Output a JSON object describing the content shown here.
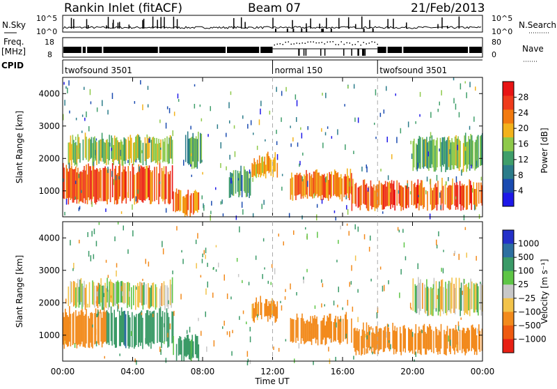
{
  "header": {
    "station": "Rankin Inlet (fitACF)",
    "beam": "Beam 07",
    "date": "21/Feb/2013"
  },
  "top_strip": {
    "left_label": "N.Sky",
    "left_ticks": [
      "10^5",
      "10^0"
    ],
    "right_label": "N.Search",
    "right_ticks": [
      "10^5",
      "10^0"
    ]
  },
  "freq_strip": {
    "left_label_1": "Freq.",
    "left_label_2": "[MHz]",
    "left_ticks": [
      "18",
      "8"
    ],
    "right_label": "Nave",
    "right_ticks": [
      "80",
      "0"
    ]
  },
  "cpid": {
    "label": "CPID",
    "segments": [
      {
        "name": "twofsound 3501",
        "start_hour": 0
      },
      {
        "name": "normal 150",
        "start_hour": 12
      },
      {
        "name": "twofsound 3501",
        "start_hour": 18
      }
    ]
  },
  "time_axis": {
    "label": "Time UT",
    "ticks": [
      "00:00",
      "04:00",
      "08:00",
      "12:00",
      "16:00",
      "20:00",
      "00:00"
    ]
  },
  "colors": {
    "power_scale": [
      "#1e18e8",
      "#1a4bb0",
      "#2b7c8a",
      "#3f9e6a",
      "#8ec94a",
      "#f2b21c",
      "#f27a10",
      "#ef3b1c",
      "#e81414"
    ],
    "velocity_scale": [
      "#2430c8",
      "#2d6fa0",
      "#3a9a67",
      "#5ec546",
      "#c8c8c8",
      "#f2c34a",
      "#f28a1c",
      "#ee5a10",
      "#e82014"
    ],
    "gate_separator": "#aaaaaa"
  },
  "chart_data": [
    {
      "type": "heatmap",
      "title": "",
      "xlabel": "Time UT",
      "ylabel": "Slant Range [km]",
      "xlim": [
        0,
        24
      ],
      "ylim": [
        200,
        4500
      ],
      "yticks": [
        1000,
        2000,
        3000,
        4000
      ],
      "xticks_hours": [
        0,
        4,
        8,
        12,
        16,
        20,
        24
      ],
      "colorbar": {
        "label": "Power [dB]",
        "range": [
          0,
          32
        ],
        "ticks": [
          4,
          8,
          12,
          16,
          20,
          24,
          28
        ]
      },
      "echo_bands": [
        {
          "t0": 0.0,
          "t1": 6.3,
          "r0": 700,
          "r1": 1700,
          "level": 26
        },
        {
          "t0": 0.3,
          "t1": 6.3,
          "r0": 1900,
          "r1": 2600,
          "level": 16
        },
        {
          "t0": 6.3,
          "t1": 7.8,
          "r0": 300,
          "r1": 900,
          "level": 24
        },
        {
          "t0": 7.0,
          "t1": 8.0,
          "r0": 1800,
          "r1": 2700,
          "level": 12
        },
        {
          "t0": 9.5,
          "t1": 10.8,
          "r0": 900,
          "r1": 1600,
          "level": 10
        },
        {
          "t0": 10.8,
          "t1": 12.3,
          "r0": 1500,
          "r1": 2000,
          "level": 22
        },
        {
          "t0": 13.0,
          "t1": 16.5,
          "r0": 800,
          "r1": 1500,
          "level": 24
        },
        {
          "t0": 16.5,
          "t1": 24.0,
          "r0": 500,
          "r1": 1200,
          "level": 26
        },
        {
          "t0": 20.0,
          "t1": 24.0,
          "r0": 1700,
          "r1": 2600,
          "level": 14
        }
      ]
    },
    {
      "type": "heatmap",
      "title": "",
      "xlabel": "Time UT",
      "ylabel": "Slant Range [km]",
      "xlim": [
        0,
        24
      ],
      "ylim": [
        200,
        4500
      ],
      "yticks": [
        1000,
        2000,
        3000,
        4000
      ],
      "xticks_hours": [
        0,
        4,
        8,
        12,
        16,
        20,
        24
      ],
      "colorbar": {
        "label": "Velocity [m s⁻¹]",
        "ticks": [
          "1000",
          "500",
          "100",
          "25",
          "−25",
          "−100",
          "−500",
          "−1000"
        ]
      },
      "echo_bands": [
        {
          "t0": 0.0,
          "t1": 2.5,
          "r0": 700,
          "r1": 1700,
          "v": -300
        },
        {
          "t0": 2.5,
          "t1": 6.3,
          "r0": 700,
          "r1": 1700,
          "v": 400
        },
        {
          "t0": 0.3,
          "t1": 6.3,
          "r0": 1900,
          "r1": 2600,
          "v": 0
        },
        {
          "t0": 6.3,
          "t1": 7.8,
          "r0": 300,
          "r1": 900,
          "v": 200
        },
        {
          "t0": 10.8,
          "t1": 12.3,
          "r0": 1500,
          "r1": 2000,
          "v": -200
        },
        {
          "t0": 13.0,
          "t1": 16.5,
          "r0": 800,
          "r1": 1500,
          "v": -300
        },
        {
          "t0": 16.5,
          "t1": 24.0,
          "r0": 500,
          "r1": 1200,
          "v": -300
        },
        {
          "t0": 20.0,
          "t1": 24.0,
          "r0": 1700,
          "r1": 2600,
          "v": 0
        }
      ]
    }
  ]
}
